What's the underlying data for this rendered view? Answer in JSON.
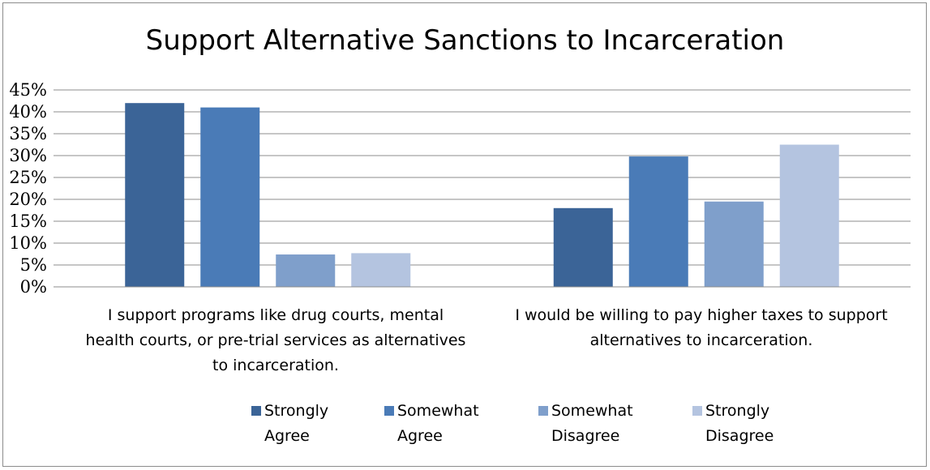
{
  "chart_data": {
    "type": "bar",
    "title": "Support Alternative Sanctions to Incarceration",
    "xlabel": "",
    "ylabel": "",
    "ylim": [
      0,
      45
    ],
    "y_ticks": [
      "0%",
      "5%",
      "10%",
      "15%",
      "20%",
      "25%",
      "30%",
      "35%",
      "40%",
      "45%"
    ],
    "grid": true,
    "legend_position": "bottom",
    "categories": [
      "I support programs like drug courts, mental health courts, or pre-trial services as alternatives to incarceration.",
      "I would be willing to pay higher taxes to support alternatives to incarceration."
    ],
    "series": [
      {
        "name": "Strongly Agree",
        "color": "#3b6497",
        "values": [
          42,
          18
        ]
      },
      {
        "name": "Somewhat Agree",
        "color": "#4a7bb7",
        "values": [
          41,
          29.8
        ]
      },
      {
        "name": "Somewhat Disagree",
        "color": "#7f9fcb",
        "values": [
          7.4,
          19.5
        ]
      },
      {
        "name": "Strongly Disagree",
        "color": "#b4c4e0",
        "values": [
          7.7,
          32.5
        ]
      }
    ]
  }
}
